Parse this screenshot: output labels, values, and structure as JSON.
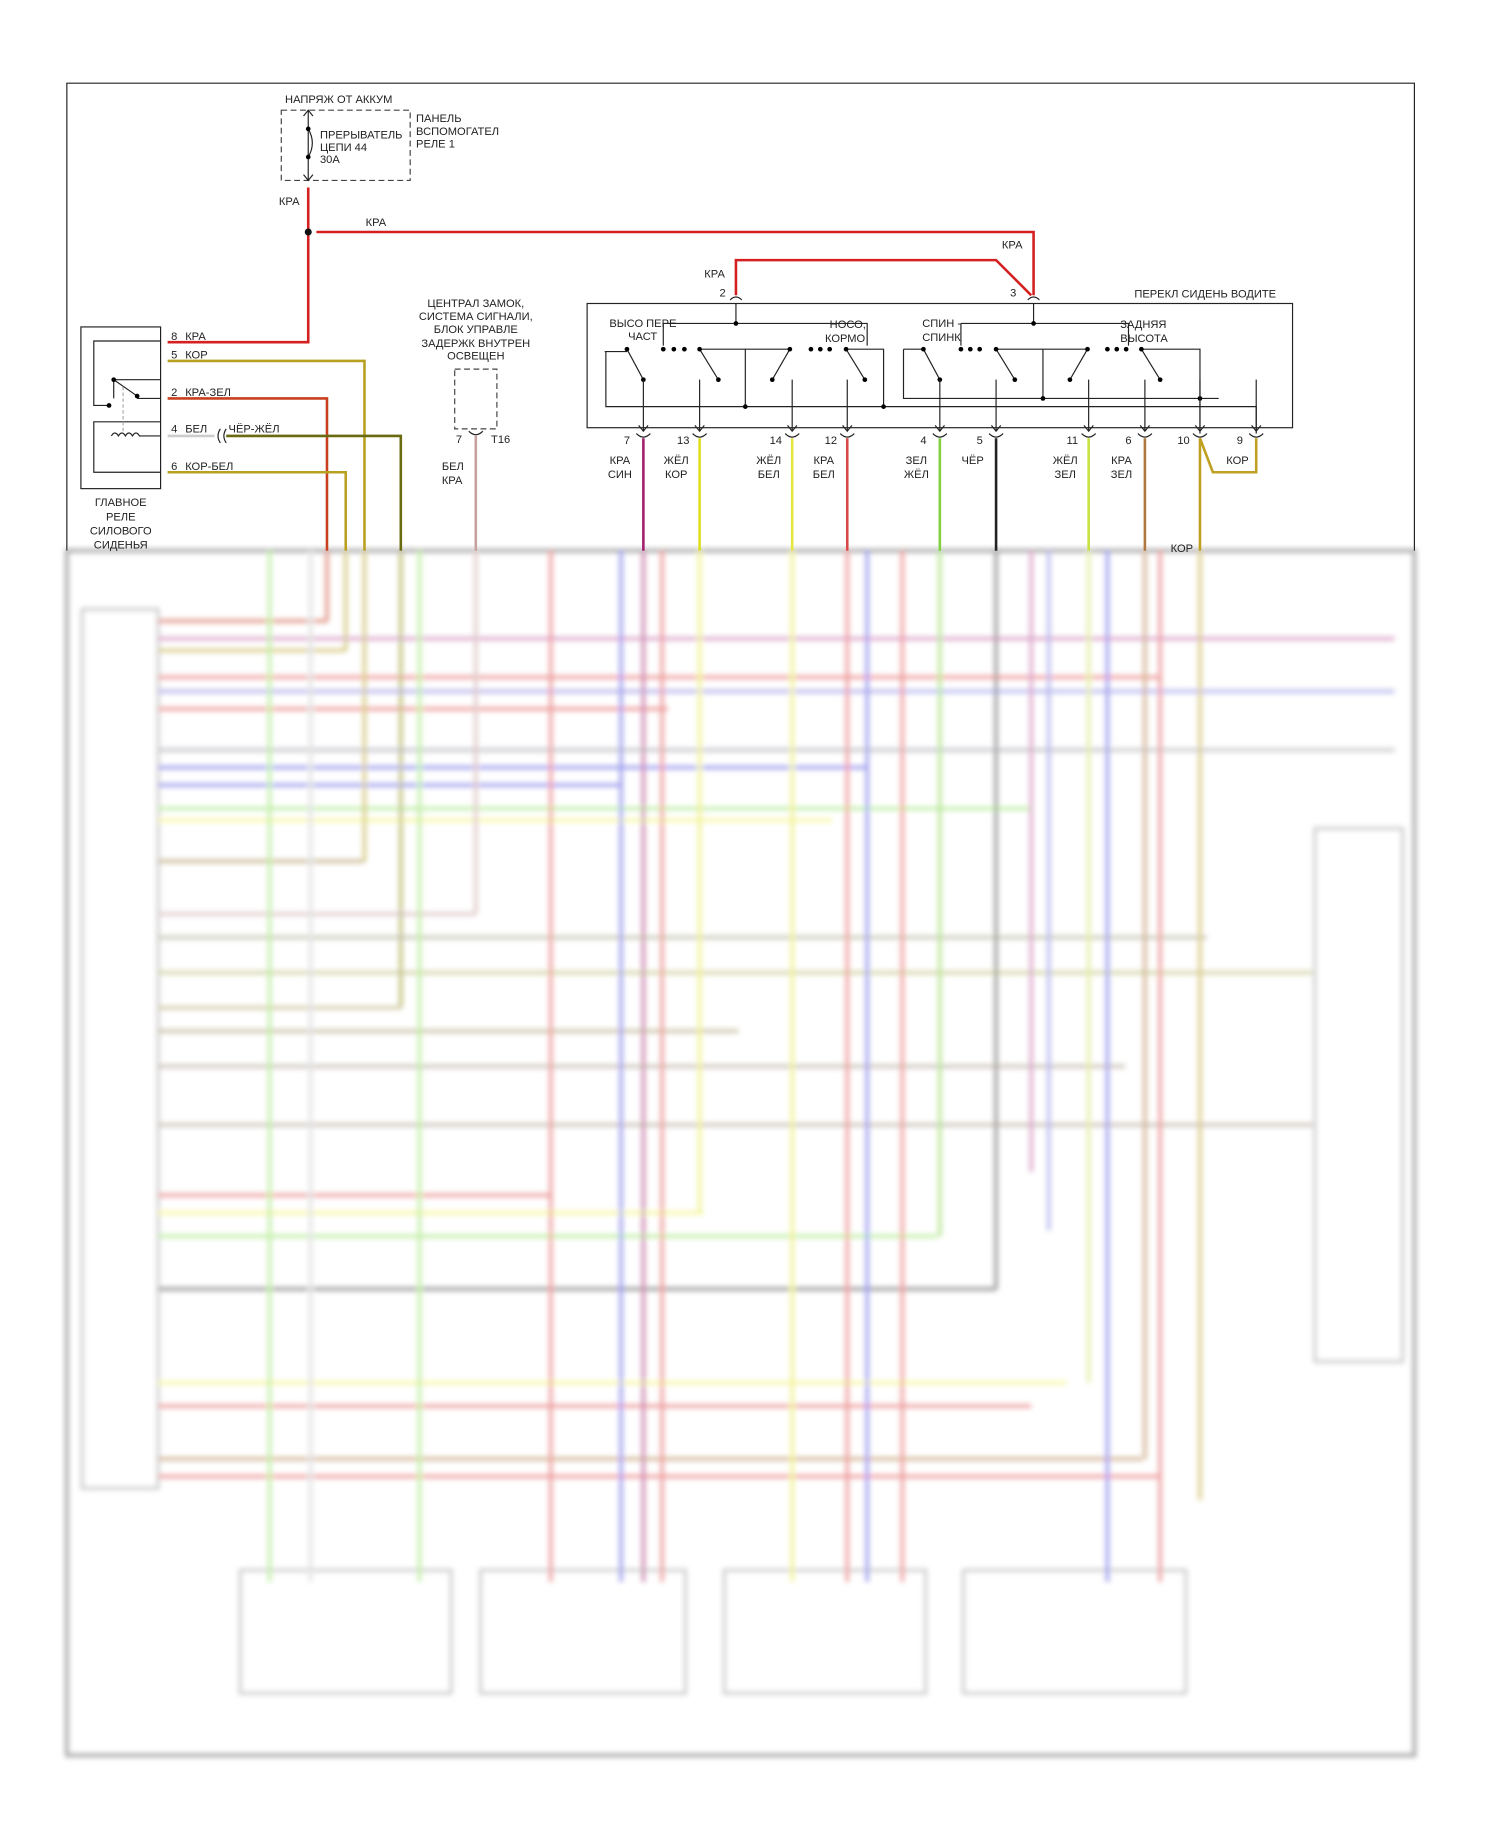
{
  "battery_label": "НАПРЯЖ ОТ АККУМ",
  "breaker": {
    "lines": [
      "ПРЕРЫВАТЕЛЬ",
      "ЦЕПИ 44",
      "30А"
    ]
  },
  "panel": {
    "lines": [
      "ПАНЕЛЬ",
      "ВСПОМОГАТЕЛ",
      "РЕЛЕ 1"
    ]
  },
  "feed_wires": {
    "down": "КРА",
    "horizontal": "КРА",
    "to_pin3": "КРА",
    "to_pin2": "КРА"
  },
  "relay": {
    "title_lines": [
      "ГЛАВНОЕ",
      "РЕЛЕ",
      "СИЛОВОГО",
      "СИДЕНЬЯ"
    ],
    "pins": [
      {
        "pin": "8",
        "wire": "КРА"
      },
      {
        "pin": "5",
        "wire": "КОР"
      },
      {
        "pin": "2",
        "wire": "КРА-ЗЕЛ"
      },
      {
        "pin": "4",
        "wire": "БЕЛ",
        "splice_wire": "ЧЁР-ЖЁЛ"
      },
      {
        "pin": "6",
        "wire": "КОР-БЕЛ"
      }
    ]
  },
  "central_lock": {
    "title_lines": [
      "ЦЕНТРАЛ ЗАМОК,",
      "СИСТЕМА СИГНАЛИ,",
      "БЛОК УПРАВЛЕ",
      "ЗАДЕРЖК ВНУТРЕН",
      "ОСВЕЩЕН"
    ],
    "pin": "7",
    "connector": "T16",
    "wire_lines": [
      "БЕЛ",
      "КРА"
    ]
  },
  "seat_switch": {
    "title": "ПЕРЕКЛ СИДЕНЬ ВОДИТЕ",
    "input_pins": [
      "2",
      "3"
    ],
    "sections": [
      {
        "lines": [
          "ВЫСО ПЕРЕ",
          "ЧАСТ"
        ]
      },
      {
        "lines": [
          "НОСО,",
          "КОРМО"
        ]
      },
      {
        "lines": [
          "СПИН -",
          "СПИНК"
        ]
      },
      {
        "lines": [
          "ЗАДНЯЯ",
          "ВЫСОТА"
        ]
      }
    ],
    "outputs": [
      {
        "pin": "7",
        "wire": [
          "КРА",
          "СИН"
        ],
        "color": "#a3206e"
      },
      {
        "pin": "13",
        "wire": [
          "ЖЁЛ",
          "КОР"
        ],
        "color": "#dede20"
      },
      {
        "pin": "14",
        "wire": [
          "ЖЁЛ",
          "БЕЛ"
        ],
        "color": "#e6e640"
      },
      {
        "pin": "12",
        "wire": [
          "КРА",
          "БЕЛ"
        ],
        "color": "#d84848"
      },
      {
        "pin": "4",
        "wire": [
          "ЗЕЛ",
          "ЖЁЛ"
        ],
        "color": "#80d040"
      },
      {
        "pin": "5",
        "wire": [
          "ЧЁР"
        ],
        "color": "#222222"
      },
      {
        "pin": "11",
        "wire": [
          "ЖЁЛ",
          "ЗЕЛ"
        ],
        "color": "#c8e040"
      },
      {
        "pin": "6",
        "wire": [
          "КРА",
          "ЗЕЛ"
        ],
        "color": "#b07840"
      },
      {
        "pin": "10",
        "wire": [],
        "color": "#c0a020"
      },
      {
        "pin": "9",
        "wire": [
          "КОР"
        ],
        "color": "#c0a020"
      }
    ],
    "pin10_wire": "КОР"
  },
  "colors": {
    "red": "#d42020",
    "brown_olive": "#b8a020",
    "red_green": "#c84020",
    "dark_yellow": "#8a8a10",
    "pink": "#c8a0a0"
  }
}
